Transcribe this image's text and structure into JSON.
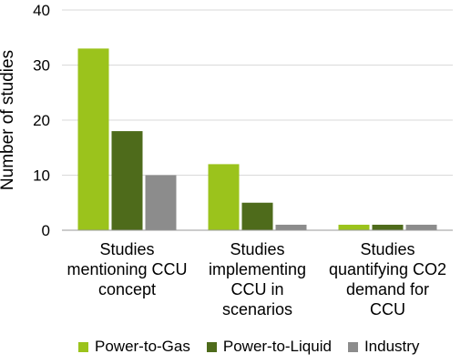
{
  "chart_data": {
    "type": "bar",
    "ylabel": "Number of studies",
    "ylim": [
      0,
      40
    ],
    "yticks": [
      0,
      10,
      20,
      30,
      40
    ],
    "grid": true,
    "legend_position": "bottom",
    "categories": [
      [
        "Studies",
        "mentioning CCU",
        "concept"
      ],
      [
        "Studies",
        "implementing",
        "CCU in",
        "scenarios"
      ],
      [
        "Studies",
        "quantifying CO2",
        "demand for",
        "CCU"
      ]
    ],
    "series": [
      {
        "name": "Power-to-Gas",
        "color": "#9BC31C",
        "values": [
          33,
          12,
          1
        ]
      },
      {
        "name": "Power-to-Liquid",
        "color": "#4E6B1B",
        "values": [
          18,
          5,
          1
        ]
      },
      {
        "name": "Industry",
        "color": "#8C8C8C",
        "values": [
          10,
          1,
          1
        ]
      }
    ]
  }
}
